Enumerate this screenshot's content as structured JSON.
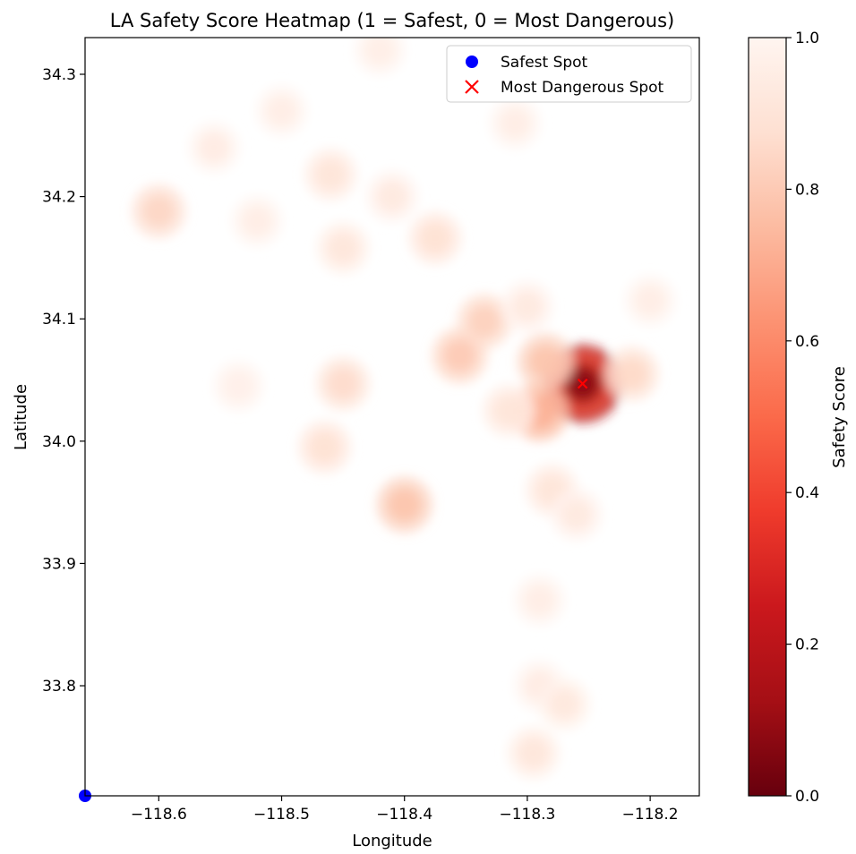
{
  "chart_data": {
    "type": "heatmap",
    "title": "LA Safety Score Heatmap (1 = Safest, 0 = Most Dangerous)",
    "xlabel": "Longitude",
    "ylabel": "Latitude",
    "xlim": [
      -118.66,
      -118.16
    ],
    "ylim": [
      33.71,
      34.33
    ],
    "xticks": [
      -118.6,
      -118.5,
      -118.4,
      -118.3,
      -118.2
    ],
    "xtick_labels": [
      "−118.6",
      "−118.5",
      "−118.4",
      "−118.3",
      "−118.2"
    ],
    "yticks": [
      33.8,
      33.9,
      34.0,
      34.1,
      34.2,
      34.3
    ],
    "ytick_labels": [
      "33.8",
      "33.9",
      "34.0",
      "34.1",
      "34.2",
      "34.3"
    ],
    "grid": false,
    "colormap": "Reds_r",
    "colorbar": {
      "label": "Safety Score",
      "range": [
        0.0,
        1.0
      ],
      "ticks": [
        0.0,
        0.2,
        0.4,
        0.6,
        0.8,
        1.0
      ],
      "tick_labels": [
        "0.0",
        "0.2",
        "0.4",
        "0.6",
        "0.8",
        "1.0"
      ]
    },
    "hotspots": [
      {
        "lon": -118.255,
        "lat": 34.047,
        "score": 0.08
      },
      {
        "lon": -118.285,
        "lat": 34.065,
        "score": 0.78
      },
      {
        "lon": -118.29,
        "lat": 34.024,
        "score": 0.72
      },
      {
        "lon": -118.215,
        "lat": 34.055,
        "score": 0.85
      },
      {
        "lon": -118.335,
        "lat": 34.098,
        "score": 0.82
      },
      {
        "lon": -118.355,
        "lat": 34.07,
        "score": 0.8
      },
      {
        "lon": -118.315,
        "lat": 34.025,
        "score": 0.9
      },
      {
        "lon": -118.3,
        "lat": 34.11,
        "score": 0.93
      },
      {
        "lon": -118.2,
        "lat": 34.115,
        "score": 0.95
      },
      {
        "lon": -118.45,
        "lat": 34.047,
        "score": 0.86
      },
      {
        "lon": -118.465,
        "lat": 33.995,
        "score": 0.88
      },
      {
        "lon": -118.4,
        "lat": 33.948,
        "score": 0.78
      },
      {
        "lon": -118.6,
        "lat": 34.188,
        "score": 0.84
      },
      {
        "lon": -118.46,
        "lat": 34.218,
        "score": 0.9
      },
      {
        "lon": -118.45,
        "lat": 34.158,
        "score": 0.91
      },
      {
        "lon": -118.375,
        "lat": 34.166,
        "score": 0.88
      },
      {
        "lon": -118.41,
        "lat": 34.2,
        "score": 0.93
      },
      {
        "lon": -118.555,
        "lat": 34.24,
        "score": 0.94
      },
      {
        "lon": -118.52,
        "lat": 34.18,
        "score": 0.95
      },
      {
        "lon": -118.5,
        "lat": 34.27,
        "score": 0.95
      },
      {
        "lon": -118.42,
        "lat": 34.32,
        "score": 0.96
      },
      {
        "lon": -118.31,
        "lat": 34.26,
        "score": 0.95
      },
      {
        "lon": -118.28,
        "lat": 33.96,
        "score": 0.9
      },
      {
        "lon": -118.26,
        "lat": 33.94,
        "score": 0.93
      },
      {
        "lon": -118.29,
        "lat": 33.87,
        "score": 0.95
      },
      {
        "lon": -118.29,
        "lat": 33.8,
        "score": 0.94
      },
      {
        "lon": -118.27,
        "lat": 33.785,
        "score": 0.92
      },
      {
        "lon": -118.295,
        "lat": 33.745,
        "score": 0.91
      },
      {
        "lon": -118.535,
        "lat": 34.045,
        "score": 0.97
      }
    ],
    "points": [
      {
        "name": "Safest Spot",
        "lon": -118.66,
        "lat": 33.71,
        "marker": "circle",
        "color": "#0000ff"
      },
      {
        "name": "Most Dangerous Spot",
        "lon": -118.255,
        "lat": 34.047,
        "marker": "x",
        "color": "#ff0000"
      }
    ],
    "legend_position": "top-right"
  }
}
